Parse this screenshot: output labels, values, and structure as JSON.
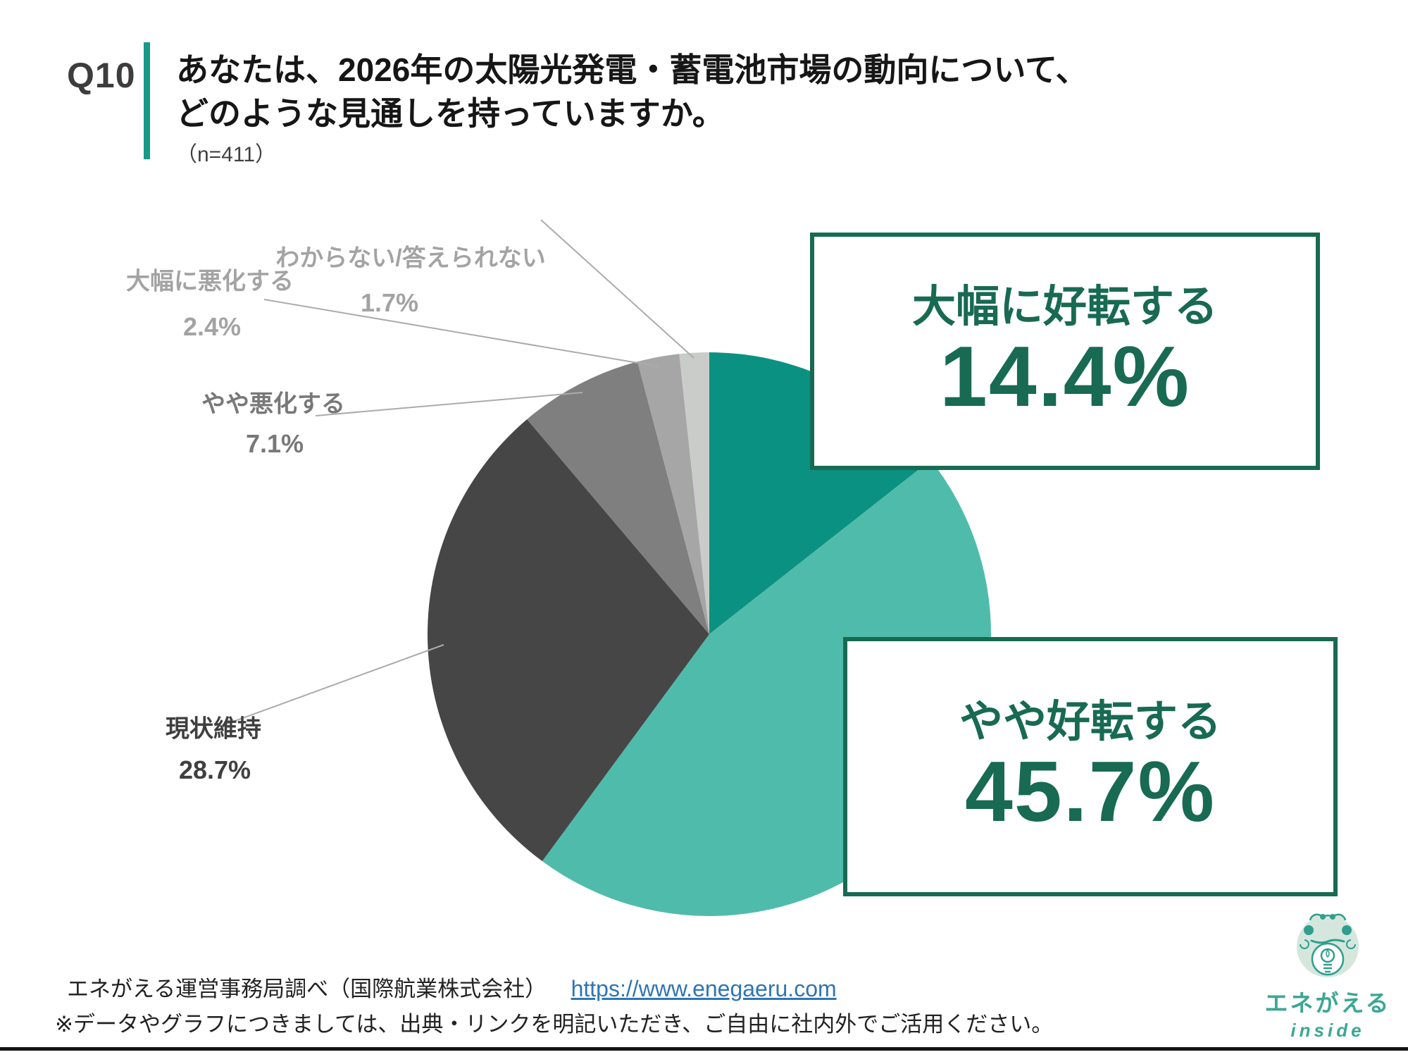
{
  "header": {
    "qnum": "Q10",
    "title_line1": "あなたは、2026年の太陽光発電・蓄電池市場の動向について、",
    "title_line2": "どのような見通しを持っていますか。",
    "sample": "（n=411）"
  },
  "chart_data": {
    "type": "pie",
    "title": "あなたは、2026年の太陽光発電・蓄電池市場の動向について、どのような見通しを持っていますか。",
    "n_label": "（n=411）",
    "start_angle_deg": 0,
    "direction": "clockwise",
    "segments": [
      {
        "label": "大幅に好転する",
        "value": 14.4,
        "color": "#0b9181"
      },
      {
        "label": "やや好転する",
        "value": 45.7,
        "color": "#4fbcab"
      },
      {
        "label": "現状維持",
        "value": 28.7,
        "color": "#464646"
      },
      {
        "label": "やや悪化する",
        "value": 7.1,
        "color": "#7f7f7f"
      },
      {
        "label": "大幅に悪化する",
        "value": 2.4,
        "color": "#a6a6a6"
      },
      {
        "label": "わからない/答えられない",
        "value": 1.7,
        "color": "#caccca"
      }
    ]
  },
  "callouts": [
    {
      "label": "大幅に好転する",
      "value_text": "14.4%"
    },
    {
      "label": "やや好転する",
      "value_text": "45.7%"
    }
  ],
  "side_labels": [
    {
      "name": "わからない/答えられない",
      "pct": "1.7%"
    },
    {
      "name": "大幅に悪化する",
      "pct": "2.4%"
    },
    {
      "name": "やや悪化する",
      "pct": "7.1%"
    },
    {
      "name": "現状維持",
      "pct": "28.7%"
    }
  ],
  "footer": {
    "source": "エネがえる運営事務局調べ（国際航業株式会社）",
    "url": "https://www.enegaeru.com",
    "note": "※データやグラフにつきましては、出典・リンクを明記いただき、ご自由に社内外でご活用ください。"
  },
  "logo": {
    "brand": "エネがえる",
    "sub": "inside"
  },
  "colors": {
    "accent_teal_dark": "#0b9181",
    "accent_teal_light": "#4fbcab",
    "callout_green": "#186a52",
    "header_bar_teal": "#18998a",
    "link_blue": "#2e75b6"
  }
}
